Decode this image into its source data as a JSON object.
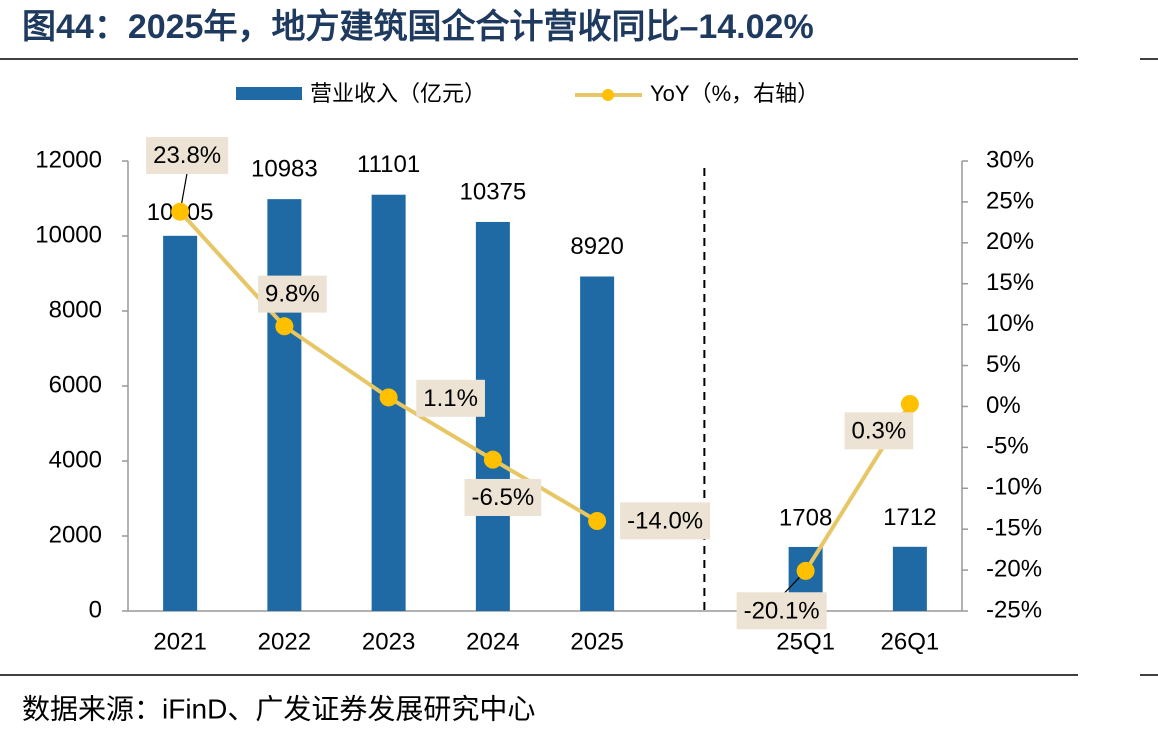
{
  "chart_data": {
    "type": "bar",
    "title": "图44：2025年，地方建筑国企合计营收同比–14.02%",
    "source": "数据来源：iFinD、广发证券发展研究中心",
    "categories": [
      "2021",
      "2022",
      "2023",
      "2024",
      "2025",
      null,
      "25Q1",
      "26Q1"
    ],
    "series": [
      {
        "name": "营业收入（亿元）",
        "type": "bar",
        "color": "#1f6aa5",
        "axis": "y",
        "values": [
          10005,
          10983,
          11101,
          10375,
          8920,
          null,
          1708,
          1712
        ]
      },
      {
        "name": "YoY（%，右轴）",
        "type": "line",
        "color": "#e6c665",
        "marker_color": "#ffc000",
        "axis": "y2",
        "values": [
          23.8,
          9.8,
          1.1,
          -6.5,
          -14.0,
          null,
          -20.1,
          0.3
        ],
        "value_labels": [
          "23.8%",
          "9.8%",
          "1.1%",
          "-6.5%",
          "-14.0%",
          null,
          "-20.1%",
          "0.3%"
        ]
      }
    ],
    "ylim": [
      0,
      12000
    ],
    "yticks": [
      0,
      2000,
      4000,
      6000,
      8000,
      10000,
      12000
    ],
    "y2lim": [
      -25,
      30
    ],
    "y2ticks": [
      {
        "value": -25,
        "label": "-25%"
      },
      {
        "value": -20,
        "label": "-20%"
      },
      {
        "value": -15,
        "label": "-15%"
      },
      {
        "value": -10,
        "label": "-10%"
      },
      {
        "value": -5,
        "label": "-5%"
      },
      {
        "value": 0,
        "label": "0%"
      },
      {
        "value": 5,
        "label": "5%"
      },
      {
        "value": 10,
        "label": "10%"
      },
      {
        "value": 15,
        "label": "15%"
      },
      {
        "value": 20,
        "label": "20%"
      },
      {
        "value": 25,
        "label": "25%"
      },
      {
        "value": 30,
        "label": "30%"
      }
    ],
    "legend": "top"
  }
}
